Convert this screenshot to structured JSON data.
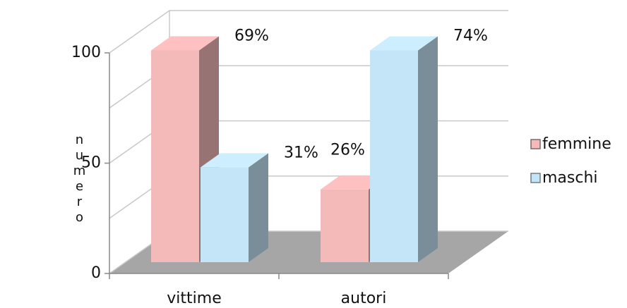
{
  "chart_data": {
    "type": "bar3d",
    "categories": [
      "vittime",
      "autori"
    ],
    "series": [
      {
        "name": "femmine",
        "color": "#f4b9b9",
        "values": [
          96,
          33
        ],
        "annotations": [
          "69%",
          "26%"
        ]
      },
      {
        "name": "maschi",
        "color": "#c4e5f7",
        "values": [
          43,
          96
        ],
        "annotations": [
          "31%",
          "74%"
        ]
      }
    ],
    "ylabel": "numero",
    "ylim": [
      0,
      100
    ],
    "yticks": [
      0,
      50,
      100
    ],
    "yminorticks": [
      25,
      75
    ],
    "grid": true,
    "legend": "right"
  }
}
